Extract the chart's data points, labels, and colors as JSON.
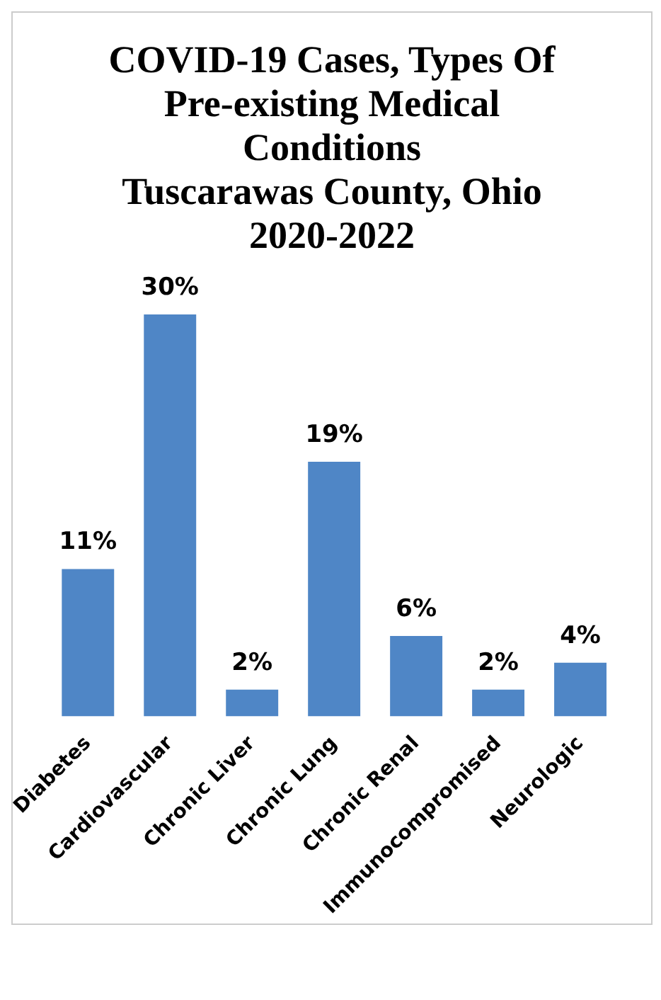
{
  "chart_data": {
    "type": "bar",
    "title": "COVID-19 Cases, Types Of Pre-existing Medical Conditions\nTuscarawas County, Ohio\n2020-2022",
    "categories": [
      "Diabetes",
      "Cardiovascular",
      "Chronic Liver",
      "Chronic Lung",
      "Chronic Renal",
      "Immunocompromised",
      "Neurologic"
    ],
    "values": [
      11,
      30,
      2,
      19,
      6,
      2,
      4
    ],
    "value_labels": [
      "11%",
      "30%",
      "2%",
      "19%",
      "6%",
      "2%",
      "4%"
    ],
    "color": "#4f86c6",
    "grid": false,
    "legend": false
  }
}
